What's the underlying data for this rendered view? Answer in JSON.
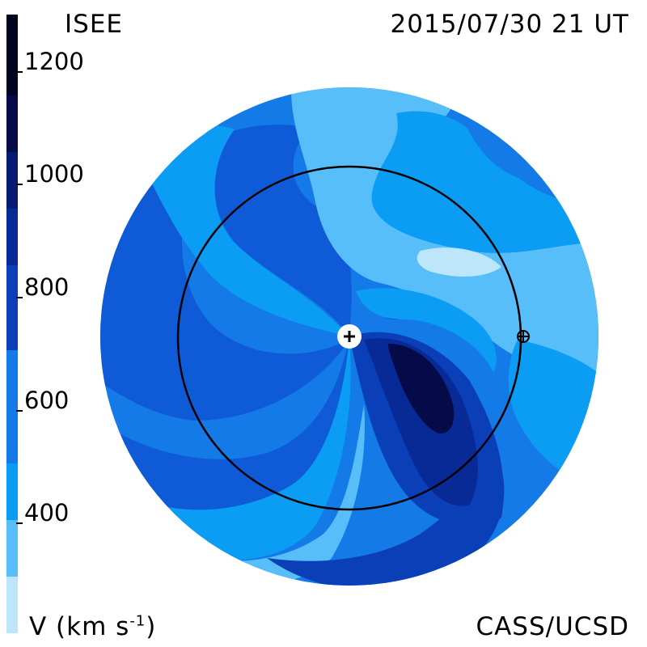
{
  "header": {
    "source": "ISEE",
    "datetime": "2015/07/30 21 UT"
  },
  "footer": {
    "quantity_label": "V (km s",
    "quantity_exp": "-1",
    "quantity_close": ")",
    "credit": "CASS/UCSD"
  },
  "colorbar": {
    "ticks": [
      "1200",
      "1000",
      "800",
      "600",
      "400"
    ],
    "bands": [
      "#bde6fb",
      "#57bef9",
      "#0b9cf4",
      "#137ae7",
      "#0f5bd7",
      "#0b3fb8",
      "#082a96",
      "#071a72",
      "#050b48",
      "#020520"
    ]
  },
  "map": {
    "sun_marker": "sun-plus-icon",
    "earth_marker": "earth-icon",
    "earth_orbit": "orbit-circle",
    "colors": {
      "light": "#bde6fb",
      "sky": "#57bef9",
      "mid": "#0b9cf4",
      "blue": "#137ae7",
      "deep": "#0f5bd7",
      "navy": "#0b3fb8",
      "dark": "#082a96",
      "darkest": "#050b48"
    }
  }
}
